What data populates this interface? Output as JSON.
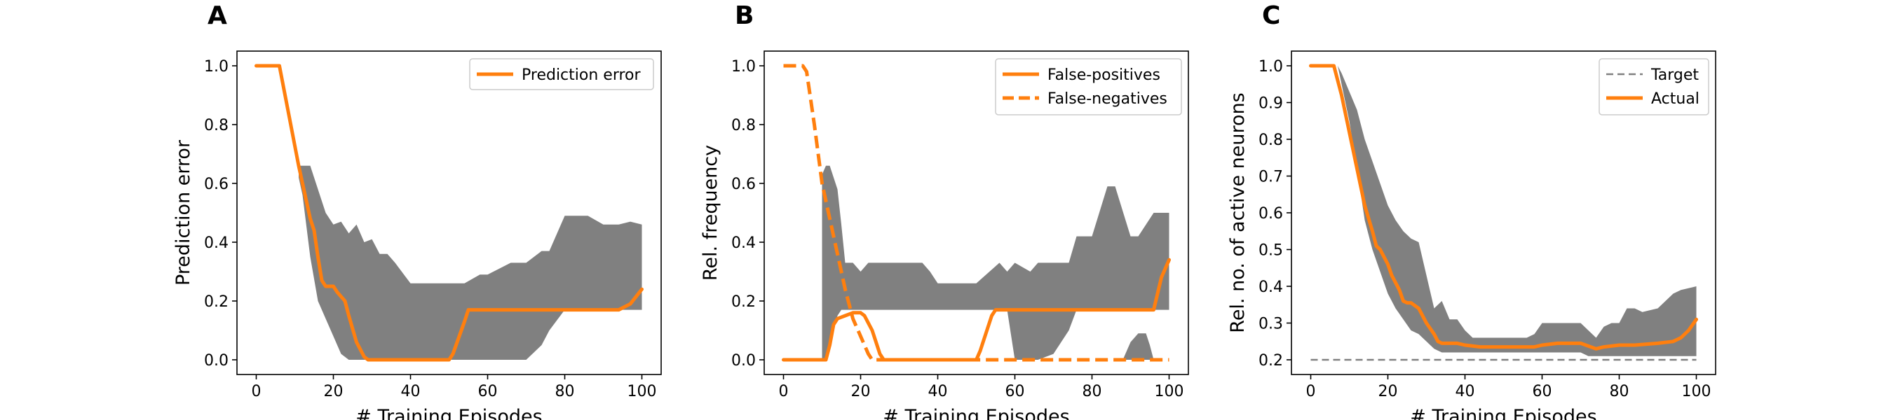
{
  "figure": {
    "panel_letters": [
      "A",
      "B",
      "C"
    ],
    "xlabel": "# Training Episodes"
  },
  "colors": {
    "orange": "#ff7f0e",
    "band": "#808080",
    "target": "#808080"
  },
  "chart_data": [
    {
      "type": "line",
      "panel": "A",
      "xlabel": "# Training Episodes",
      "ylabel": "Prediction error",
      "xlim": [
        -5,
        105
      ],
      "ylim": [
        -0.05,
        1.05
      ],
      "xticks": [
        0,
        20,
        40,
        60,
        80,
        100
      ],
      "yticks": [
        0.0,
        0.2,
        0.4,
        0.6,
        0.8,
        1.0
      ],
      "ytick_labels": [
        "0.0",
        "0.2",
        "0.4",
        "0.6",
        "0.8",
        "1.0"
      ],
      "legend_position": "top-right",
      "band": {
        "x": [
          11,
          12,
          14,
          16,
          18,
          20,
          22,
          24,
          26,
          28,
          30,
          32,
          34,
          36,
          40,
          44,
          50,
          54,
          58,
          60,
          66,
          70,
          74,
          76,
          80,
          86,
          90,
          94,
          97,
          100
        ],
        "upper": [
          0.66,
          0.66,
          0.66,
          0.58,
          0.5,
          0.46,
          0.47,
          0.43,
          0.46,
          0.4,
          0.41,
          0.36,
          0.36,
          0.33,
          0.26,
          0.26,
          0.26,
          0.26,
          0.29,
          0.29,
          0.33,
          0.33,
          0.37,
          0.37,
          0.49,
          0.49,
          0.46,
          0.46,
          0.47,
          0.46
        ],
        "lower": [
          0.62,
          0.56,
          0.35,
          0.2,
          0.14,
          0.08,
          0.02,
          0.0,
          0.0,
          0.0,
          0.0,
          0.0,
          0.0,
          0.0,
          0.0,
          0.0,
          0.0,
          0.0,
          0.0,
          0.0,
          0.0,
          0.0,
          0.05,
          0.1,
          0.17,
          0.17,
          0.17,
          0.17,
          0.17,
          0.17
        ]
      },
      "series": [
        {
          "name": "Prediction error",
          "style": "solid",
          "x": [
            0,
            6,
            11,
            12,
            14,
            15,
            16,
            17,
            18,
            20,
            21,
            23,
            24,
            26,
            28,
            29,
            30,
            40,
            50,
            51,
            54,
            55,
            60,
            70,
            80,
            90,
            94,
            97,
            100
          ],
          "y": [
            1.0,
            1.0,
            0.66,
            0.6,
            0.48,
            0.44,
            0.35,
            0.27,
            0.25,
            0.25,
            0.23,
            0.2,
            0.15,
            0.06,
            0.01,
            0.0,
            0.0,
            0.0,
            0.0,
            0.02,
            0.13,
            0.17,
            0.17,
            0.17,
            0.17,
            0.17,
            0.17,
            0.19,
            0.24
          ]
        }
      ]
    },
    {
      "type": "line",
      "panel": "B",
      "xlabel": "# Training Episodes",
      "ylabel": "Rel. frequency",
      "xlim": [
        -5,
        105
      ],
      "ylim": [
        -0.05,
        1.05
      ],
      "xticks": [
        0,
        20,
        40,
        60,
        80,
        100
      ],
      "yticks": [
        0.0,
        0.2,
        0.4,
        0.6,
        0.8,
        1.0
      ],
      "ytick_labels": [
        "0.0",
        "0.2",
        "0.4",
        "0.6",
        "0.8",
        "1.0"
      ],
      "legend_position": "top-right",
      "bands": [
        {
          "x": [
            10,
            11,
            12,
            14,
            15,
            16,
            18,
            20,
            22,
            24,
            26,
            30,
            36,
            38,
            40,
            44,
            50,
            56,
            58,
            60,
            64,
            66,
            70,
            74,
            76,
            80,
            84,
            86,
            90,
            92,
            96,
            98,
            100
          ],
          "upper": [
            0.63,
            0.66,
            0.66,
            0.58,
            0.46,
            0.33,
            0.33,
            0.3,
            0.33,
            0.33,
            0.33,
            0.33,
            0.33,
            0.3,
            0.26,
            0.26,
            0.26,
            0.33,
            0.3,
            0.33,
            0.3,
            0.33,
            0.33,
            0.33,
            0.42,
            0.42,
            0.59,
            0.59,
            0.42,
            0.42,
            0.5,
            0.5,
            0.5
          ],
          "lower": [
            0.0,
            0.0,
            0.05,
            0.15,
            0.17,
            0.17,
            0.17,
            0.17,
            0.17,
            0.17,
            0.17,
            0.17,
            0.17,
            0.17,
            0.17,
            0.17,
            0.17,
            0.17,
            0.17,
            0.0,
            0.0,
            0.0,
            0.02,
            0.1,
            0.17,
            0.17,
            0.17,
            0.17,
            0.17,
            0.17,
            0.17,
            0.17,
            0.17
          ]
        },
        {
          "x": [
            88,
            89,
            90,
            92,
            93,
            94,
            95,
            96
          ],
          "upper": [
            0.0,
            0.03,
            0.06,
            0.09,
            0.09,
            0.09,
            0.05,
            0.0
          ],
          "lower": [
            0.0,
            0.0,
            0.0,
            0.0,
            0.0,
            0.0,
            0.0,
            0.0
          ]
        }
      ],
      "series": [
        {
          "name": "False-positives",
          "style": "solid",
          "x": [
            0,
            8,
            11,
            12,
            13,
            14,
            16,
            18,
            20,
            21,
            23,
            24,
            25,
            26,
            30,
            40,
            50,
            51,
            54,
            55,
            60,
            70,
            80,
            90,
            96,
            98,
            100
          ],
          "y": [
            0.0,
            0.0,
            0.0,
            0.05,
            0.12,
            0.14,
            0.15,
            0.16,
            0.16,
            0.15,
            0.1,
            0.06,
            0.02,
            0.0,
            0.0,
            0.0,
            0.0,
            0.03,
            0.15,
            0.17,
            0.17,
            0.17,
            0.17,
            0.17,
            0.17,
            0.28,
            0.34
          ]
        },
        {
          "name": "False-negatives",
          "style": "dashed",
          "x": [
            0,
            5,
            6,
            8,
            10,
            12,
            14,
            16,
            18,
            20,
            22,
            23,
            30,
            40,
            50,
            60,
            70,
            80,
            90,
            100
          ],
          "y": [
            1.0,
            1.0,
            0.98,
            0.8,
            0.6,
            0.48,
            0.36,
            0.24,
            0.14,
            0.08,
            0.02,
            0.0,
            0.0,
            0.0,
            0.0,
            0.0,
            0.0,
            0.0,
            0.0,
            0.0
          ]
        }
      ]
    },
    {
      "type": "line",
      "panel": "C",
      "xlabel": "# Training Episodes",
      "ylabel": "Rel. no. of active neurons",
      "xlim": [
        -5,
        105
      ],
      "ylim": [
        0.16,
        1.04
      ],
      "xticks": [
        0,
        20,
        40,
        60,
        80,
        100
      ],
      "yticks": [
        0.2,
        0.3,
        0.4,
        0.5,
        0.6,
        0.7,
        0.8,
        0.9,
        1.0
      ],
      "ytick_labels": [
        "0.2",
        "0.3",
        "0.4",
        "0.5",
        "0.6",
        "0.7",
        "0.8",
        "0.9",
        "1.0"
      ],
      "legend_position": "top-right",
      "band": {
        "x": [
          6,
          7,
          8,
          10,
          12,
          14,
          16,
          18,
          20,
          22,
          24,
          26,
          28,
          30,
          32,
          34,
          36,
          38,
          40,
          42,
          46,
          50,
          56,
          58,
          60,
          64,
          68,
          70,
          72,
          74,
          76,
          78,
          80,
          82,
          84,
          86,
          90,
          94,
          96,
          100
        ],
        "upper": [
          1.0,
          1.0,
          0.98,
          0.93,
          0.88,
          0.8,
          0.74,
          0.68,
          0.62,
          0.58,
          0.55,
          0.53,
          0.52,
          0.43,
          0.34,
          0.36,
          0.31,
          0.31,
          0.28,
          0.26,
          0.26,
          0.26,
          0.26,
          0.27,
          0.3,
          0.3,
          0.3,
          0.3,
          0.28,
          0.26,
          0.29,
          0.3,
          0.3,
          0.34,
          0.34,
          0.33,
          0.34,
          0.38,
          0.39,
          0.4
        ],
        "lower": [
          1.0,
          1.0,
          0.95,
          0.85,
          0.72,
          0.58,
          0.5,
          0.44,
          0.38,
          0.34,
          0.31,
          0.28,
          0.27,
          0.25,
          0.23,
          0.22,
          0.22,
          0.22,
          0.22,
          0.22,
          0.22,
          0.22,
          0.22,
          0.22,
          0.22,
          0.22,
          0.22,
          0.22,
          0.21,
          0.21,
          0.21,
          0.21,
          0.21,
          0.21,
          0.21,
          0.21,
          0.21,
          0.21,
          0.21,
          0.21
        ]
      },
      "series": [
        {
          "name": "Target",
          "style": "dashed",
          "color": "#808080",
          "x": [
            0,
            100
          ],
          "y": [
            0.2,
            0.2
          ]
        },
        {
          "name": "Actual",
          "style": "solid",
          "x": [
            0,
            6,
            8,
            10,
            12,
            14,
            16,
            17,
            18,
            20,
            21,
            23,
            24,
            25,
            26,
            28,
            30,
            32,
            33,
            34,
            36,
            38,
            40,
            44,
            50,
            56,
            58,
            60,
            64,
            70,
            74,
            76,
            80,
            84,
            90,
            94,
            96,
            98,
            100
          ],
          "y": [
            1.0,
            1.0,
            0.92,
            0.82,
            0.72,
            0.62,
            0.55,
            0.51,
            0.5,
            0.46,
            0.43,
            0.39,
            0.36,
            0.355,
            0.355,
            0.34,
            0.3,
            0.27,
            0.25,
            0.245,
            0.245,
            0.245,
            0.24,
            0.235,
            0.235,
            0.235,
            0.235,
            0.24,
            0.245,
            0.245,
            0.23,
            0.235,
            0.24,
            0.24,
            0.245,
            0.25,
            0.26,
            0.28,
            0.31
          ]
        }
      ]
    }
  ]
}
